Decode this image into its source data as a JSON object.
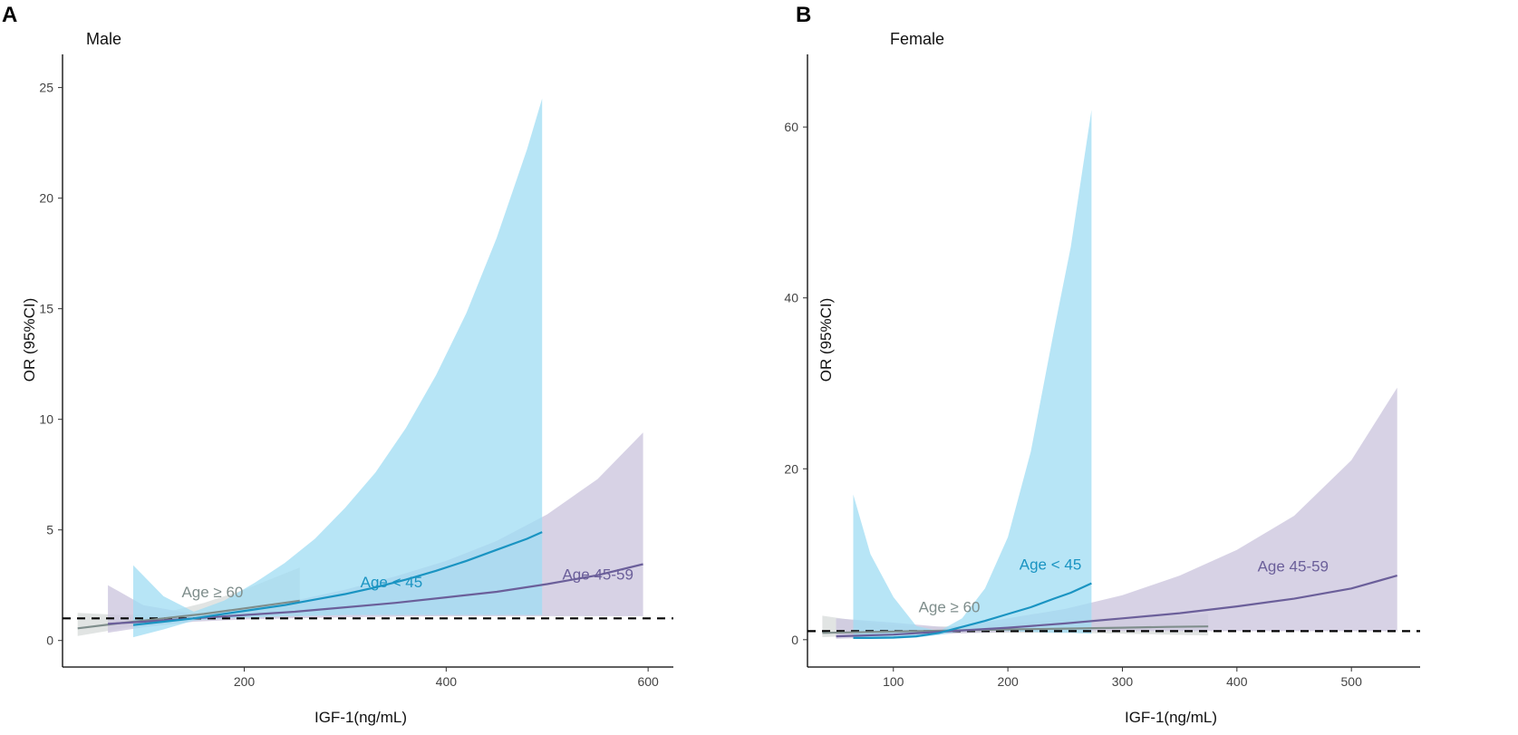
{
  "chart_data": [
    {
      "type": "line",
      "panel": "A",
      "title": "Male",
      "xlabel": "IGF-1(ng/mL)",
      "ylabel": "OR (95%CI)",
      "xlim": [
        20,
        625
      ],
      "ylim": [
        -1.2,
        26.5
      ],
      "xticks": [
        200,
        400,
        600
      ],
      "yticks": [
        0,
        5,
        10,
        15,
        20,
        25
      ],
      "reference_line": 1,
      "series": [
        {
          "name": "Age < 45",
          "label": "Age < 45",
          "color": "#1a94c2",
          "band_color": "#9fdcf3",
          "x": [
            90,
            120,
            150,
            180,
            210,
            240,
            270,
            300,
            330,
            360,
            390,
            420,
            450,
            480,
            495
          ],
          "y": [
            0.7,
            0.85,
            1.0,
            1.2,
            1.4,
            1.6,
            1.85,
            2.1,
            2.4,
            2.75,
            3.15,
            3.6,
            4.1,
            4.6,
            4.9
          ],
          "lower": [
            0.15,
            0.5,
            0.9,
            1.0,
            1.05,
            1.1,
            1.12,
            1.15,
            1.15,
            1.15,
            1.15,
            1.15,
            1.15,
            1.15,
            1.15
          ],
          "upper": [
            3.4,
            2.0,
            1.3,
            1.8,
            2.6,
            3.5,
            4.6,
            6.0,
            7.6,
            9.6,
            12.0,
            14.8,
            18.2,
            22.2,
            24.5
          ],
          "label_at": [
            315,
            2.4
          ]
        },
        {
          "name": "Age 45-59",
          "label": "Age 45-59",
          "color": "#6b5f9a",
          "band_color": "#cdc7df",
          "x": [
            65,
            100,
            150,
            200,
            250,
            300,
            350,
            400,
            450,
            500,
            550,
            595
          ],
          "y": [
            0.75,
            0.85,
            1.0,
            1.15,
            1.3,
            1.5,
            1.7,
            1.95,
            2.2,
            2.55,
            2.95,
            3.45
          ],
          "lower": [
            0.35,
            0.6,
            0.85,
            0.95,
            1.0,
            1.05,
            1.08,
            1.1,
            1.1,
            1.1,
            1.1,
            1.1
          ],
          "upper": [
            2.5,
            1.6,
            1.2,
            1.45,
            1.8,
            2.3,
            2.9,
            3.6,
            4.5,
            5.7,
            7.3,
            9.4
          ],
          "label_at": [
            515,
            2.75
          ]
        },
        {
          "name": "Age ≥ 60",
          "label": "Age ≥ 60",
          "color": "#7f8e8c",
          "band_color": "#d9dddc",
          "x": [
            35,
            80,
            120,
            160,
            200,
            255
          ],
          "y": [
            0.55,
            0.8,
            1.0,
            1.2,
            1.45,
            1.8
          ],
          "lower": [
            0.2,
            0.55,
            0.85,
            0.95,
            1.0,
            1.05
          ],
          "upper": [
            1.25,
            1.15,
            1.25,
            1.7,
            2.3,
            3.3
          ],
          "label_at": [
            138,
            1.95
          ]
        }
      ]
    },
    {
      "type": "line",
      "panel": "B",
      "title": "Female",
      "xlabel": "IGF-1(ng/mL)",
      "ylabel": "OR (95%CI)",
      "xlim": [
        25,
        560
      ],
      "ylim": [
        -3.2,
        68.5
      ],
      "xticks": [
        100,
        200,
        300,
        400,
        500
      ],
      "yticks": [
        0,
        20,
        40,
        60
      ],
      "reference_line": 1,
      "series": [
        {
          "name": "Age < 45",
          "label": "Age < 45",
          "color": "#1a94c2",
          "band_color": "#9fdcf3",
          "x": [
            65,
            80,
            100,
            120,
            140,
            160,
            180,
            200,
            220,
            240,
            255,
            273
          ],
          "y": [
            0.2,
            0.2,
            0.25,
            0.4,
            0.8,
            1.5,
            2.2,
            3.0,
            3.8,
            4.8,
            5.5,
            6.6
          ],
          "lower": [
            0.1,
            0.1,
            0.12,
            0.25,
            0.55,
            1.0,
            1.1,
            1.0,
            0.9,
            0.8,
            0.8,
            0.7
          ],
          "upper": [
            17.0,
            10.0,
            5.0,
            1.6,
            1.0,
            2.5,
            6.0,
            12.0,
            22.0,
            36.0,
            46.0,
            62.0
          ],
          "label_at": [
            210,
            8.2
          ]
        },
        {
          "name": "Age 45-59",
          "label": "Age 45-59",
          "color": "#6b5f9a",
          "band_color": "#cdc7df",
          "x": [
            50,
            100,
            150,
            200,
            250,
            300,
            350,
            400,
            450,
            500,
            540
          ],
          "y": [
            0.4,
            0.6,
            1.0,
            1.4,
            1.9,
            2.5,
            3.1,
            3.9,
            4.8,
            6.0,
            7.5
          ],
          "lower": [
            0.1,
            0.3,
            0.7,
            0.9,
            1.0,
            1.0,
            1.0,
            1.0,
            1.0,
            1.0,
            1.0
          ],
          "upper": [
            2.5,
            2.0,
            1.4,
            2.5,
            3.6,
            5.2,
            7.5,
            10.5,
            14.5,
            21.0,
            29.5
          ],
          "label_at": [
            418,
            8.0
          ]
        },
        {
          "name": "Age ≥ 60",
          "label": "Age ≥ 60",
          "color": "#7f8e8c",
          "band_color": "#d9dddc",
          "x": [
            38,
            80,
            120,
            160,
            200,
            250,
            300,
            340,
            375
          ],
          "y": [
            0.8,
            0.9,
            1.0,
            1.1,
            1.2,
            1.3,
            1.4,
            1.5,
            1.55
          ],
          "lower": [
            0.3,
            0.5,
            0.7,
            0.8,
            0.8,
            0.8,
            0.7,
            0.6,
            0.5
          ],
          "upper": [
            2.8,
            2.0,
            1.5,
            1.6,
            2.0,
            2.3,
            2.6,
            2.8,
            3.0
          ],
          "label_at": [
            122,
            3.2
          ]
        }
      ]
    }
  ]
}
